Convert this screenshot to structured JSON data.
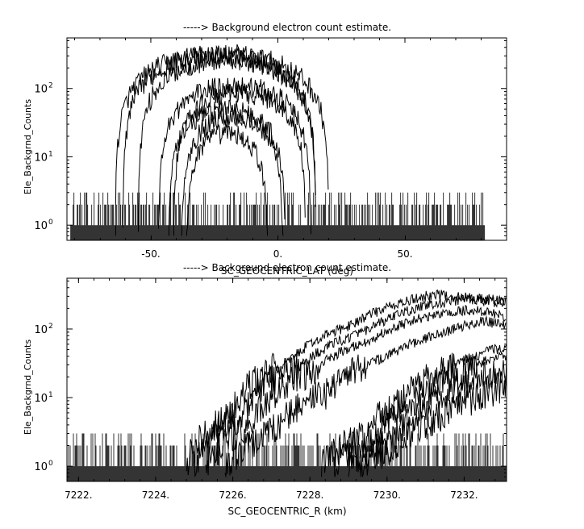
{
  "chart_data": [
    {
      "type": "line",
      "title": "-----> Background electron count estimate.",
      "xlabel": "SC_GEOCENTRIC_LAT (deg)",
      "ylabel": "Ele_Backgrnd_Counts",
      "xlim": [
        -83,
        90
      ],
      "ylim": [
        0.6,
        550
      ],
      "yscale": "log",
      "xticks": [
        {
          "value": -50,
          "label": "-50."
        },
        {
          "value": 0,
          "label": "0."
        },
        {
          "value": 50,
          "label": "50."
        }
      ],
      "yticks": [
        {
          "value": 1,
          "base": "10",
          "exp": "0"
        },
        {
          "value": 10,
          "base": "10",
          "exp": "1"
        },
        {
          "value": 100,
          "base": "10",
          "exp": "2"
        }
      ],
      "grid": false,
      "noise": {
        "x_range": [
          -81.5,
          81.5
        ],
        "levels": [
          1,
          2,
          3
        ],
        "floor": 0.6
      },
      "series": [
        {
          "center": -22,
          "half_width": 42,
          "peak": 320
        },
        {
          "center": -23,
          "half_width": 38,
          "peak": 300
        },
        {
          "center": -20,
          "half_width": 35,
          "peak": 260
        },
        {
          "center": -17,
          "half_width": 30,
          "peak": 110
        },
        {
          "center": -15,
          "half_width": 26,
          "peak": 85
        },
        {
          "center": -20,
          "half_width": 23,
          "peak": 50
        },
        {
          "center": -18,
          "half_width": 20,
          "peak": 38
        },
        {
          "center": -20,
          "half_width": 16,
          "peak": 22
        }
      ]
    },
    {
      "type": "line",
      "title": "-----> Background electron count estimate.",
      "xlabel": "SC_GEOCENTRIC_R (km)",
      "ylabel": "Ele_Backgrnd_Counts",
      "xlim": [
        7221.7,
        7233.1
      ],
      "ylim": [
        0.6,
        550
      ],
      "yscale": "log",
      "xticks": [
        {
          "value": 7222,
          "label": "7222."
        },
        {
          "value": 7224,
          "label": "7224."
        },
        {
          "value": 7226,
          "label": "7226."
        },
        {
          "value": 7228,
          "label": "7228."
        },
        {
          "value": 7230,
          "label": "7230."
        },
        {
          "value": 7232,
          "label": "7232."
        }
      ],
      "yticks": [
        {
          "value": 1,
          "base": "10",
          "exp": "0"
        },
        {
          "value": 10,
          "base": "10",
          "exp": "1"
        },
        {
          "value": 100,
          "base": "10",
          "exp": "2"
        }
      ],
      "grid": false,
      "noise": {
        "x_range": [
          7221.7,
          7233.1
        ],
        "levels": [
          1,
          2,
          3
        ],
        "floor": 0.6
      },
      "series": [
        {
          "x": [
            7224.8,
            7226.0,
            7227.5,
            7229.0,
            7230.5,
            7231.2,
            7232.0,
            7233.1
          ],
          "y": [
            1,
            6,
            35,
            110,
            250,
            320,
            290,
            260
          ]
        },
        {
          "x": [
            7225.0,
            7226.2,
            7227.8,
            7229.5,
            7231.0,
            7232.0,
            7233.1
          ],
          "y": [
            1,
            5,
            30,
            95,
            220,
            270,
            240
          ]
        },
        {
          "x": [
            7225.3,
            7226.5,
            7228.0,
            7229.6,
            7231.0,
            7232.2,
            7233.1
          ],
          "y": [
            1,
            4,
            22,
            70,
            150,
            190,
            150
          ]
        },
        {
          "x": [
            7225.8,
            7227.0,
            7228.5,
            7230.0,
            7231.5,
            7232.5,
            7233.1
          ],
          "y": [
            1,
            3,
            12,
            40,
            90,
            130,
            110
          ]
        },
        {
          "x": [
            7228.3,
            7229.5,
            7230.5,
            7231.5,
            7232.5,
            7233.1
          ],
          "y": [
            1,
            3,
            10,
            25,
            45,
            55
          ]
        },
        {
          "x": [
            7228.6,
            7229.8,
            7230.8,
            7231.8,
            7232.6,
            7233.1
          ],
          "y": [
            1,
            3,
            9,
            20,
            35,
            40
          ]
        },
        {
          "x": [
            7229.0,
            7230.0,
            7231.0,
            7232.0,
            7232.8,
            7233.1
          ],
          "y": [
            1,
            2,
            6,
            14,
            22,
            25
          ]
        },
        {
          "x": [
            7229.3,
            7230.3,
            7231.3,
            7232.3,
            7233.1
          ],
          "y": [
            1,
            2,
            5,
            10,
            15
          ]
        }
      ]
    }
  ]
}
